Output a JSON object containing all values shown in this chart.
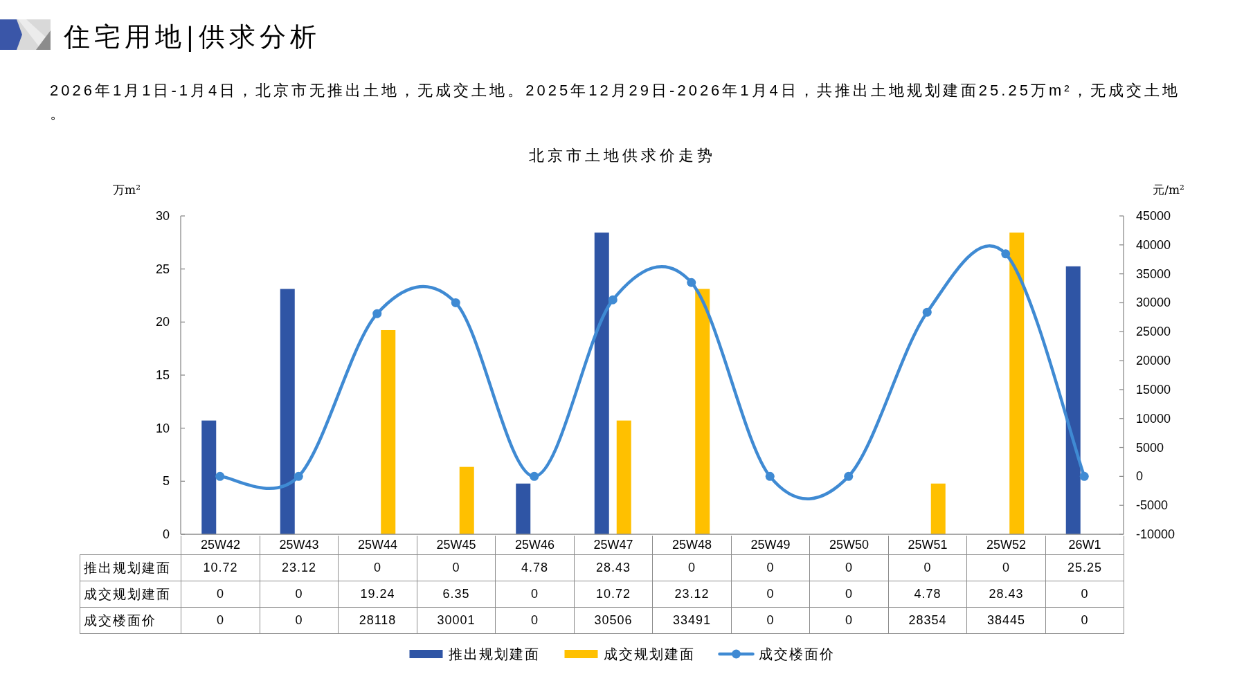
{
  "chart_data": {
    "type": "bar",
    "title": "北京市土地供求价走势",
    "subtitle": "2026年1月1日-1月4日，北京市无推出土地，无成交土地。2025年12月29日-2026年1月4日，共推出土地规划建面25.25万m²，无成交土地。",
    "annotations": [
      "住宅用地|供求分析"
    ],
    "ylabel": "万m²",
    "y2label": "元/m²",
    "categories": [
      "25W42",
      "25W43",
      "25W44",
      "25W45",
      "25W46",
      "25W47",
      "25W48",
      "25W49",
      "25W50",
      "25W51",
      "25W52",
      "26W1"
    ],
    "series": [
      {
        "name": "推出规划建面",
        "color": "#2f55a5",
        "values": [
          10.72,
          23.12,
          0,
          0,
          4.78,
          28.43,
          0,
          0,
          0,
          0,
          0,
          25.25
        ]
      },
      {
        "name": "成交规划建面",
        "color": "#ffc000",
        "values": [
          0,
          0,
          19.24,
          6.35,
          0,
          10.72,
          23.12,
          0,
          0,
          4.78,
          28.43,
          0
        ]
      },
      {
        "name": "成交楼面价",
        "type": "line",
        "axis": "y2",
        "marker": "circle",
        "color": "#3f8ad3",
        "values": [
          0,
          0,
          28118,
          30001,
          0,
          30506,
          33491,
          0,
          0,
          28354,
          38445,
          0
        ]
      }
    ],
    "ylim": [
      0,
      30
    ],
    "yticks": [
      0,
      5,
      10,
      15,
      20,
      25,
      30
    ],
    "y2lim": [
      -10000,
      45000
    ],
    "y2ticks": [
      -10000,
      -5000,
      0,
      5000,
      10000,
      15000,
      20000,
      25000,
      30000,
      35000,
      40000,
      45000
    ],
    "data_labels": true,
    "legend": "bottom"
  }
}
